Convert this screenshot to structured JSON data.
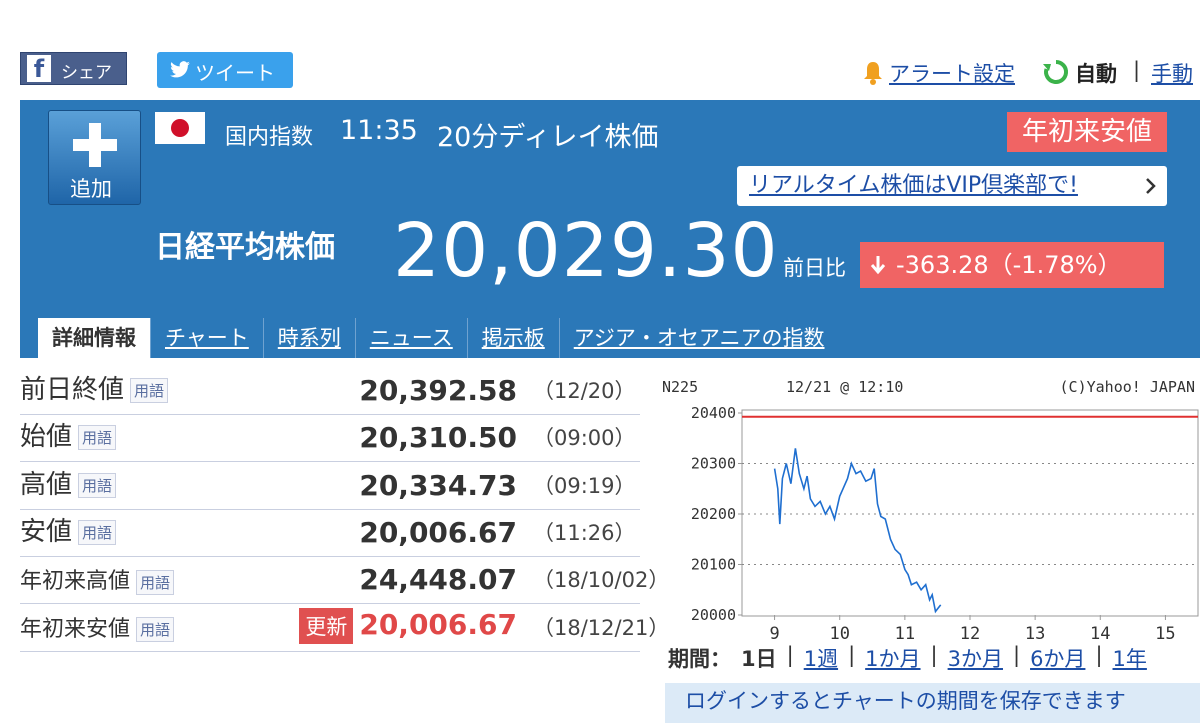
{
  "share": {
    "facebook_icon": "f",
    "facebook": "シェア",
    "twitter": "ツイート"
  },
  "header_links": {
    "alert": "アラート設定",
    "auto": "自動",
    "separator": "|",
    "manual": "手動"
  },
  "quote": {
    "add": "追加",
    "market": "国内指数",
    "time": "11:35",
    "delay": "20分ディレイ株価",
    "badge": "年初来安値",
    "vip": "リアルタイム株価はVIP倶楽部で!",
    "name": "日経平均株価",
    "price": "20,029.30",
    "change_label": "前日比",
    "change": "-363.28（-1.78%）"
  },
  "tabs": [
    "詳細情報",
    "チャート",
    "時系列",
    "ニュース",
    "掲示板",
    "アジア・オセアニアの指数"
  ],
  "table": {
    "term": "用語",
    "update": "更新",
    "rows": [
      {
        "label": "前日終値",
        "value": "20,392.58",
        "date": "（12/20）"
      },
      {
        "label": "始値",
        "value": "20,310.50",
        "date": "（09:00）"
      },
      {
        "label": "高値",
        "value": "20,334.73",
        "date": "（09:19）"
      },
      {
        "label": "安値",
        "value": "20,006.67",
        "date": "（11:26）"
      },
      {
        "label": "年初来高値",
        "value": "24,448.07",
        "date": "（18/10/02）"
      },
      {
        "label": "年初来安値",
        "value": "20,006.67",
        "date": "（18/12/21）"
      }
    ]
  },
  "chart": {
    "type": "line",
    "symbol": "N225",
    "timestamp": "12/21 @ 12:10",
    "copyright": "(C)Yahoo! JAPAN",
    "color": "#1f6fd0",
    "baseline": 20392.58,
    "baseline_color": "#e03030",
    "x": [
      9.0,
      9.05,
      9.08,
      9.12,
      9.18,
      9.25,
      9.32,
      9.38,
      9.45,
      9.5,
      9.55,
      9.62,
      9.7,
      9.78,
      9.85,
      9.92,
      10.0,
      10.05,
      10.12,
      10.18,
      10.25,
      10.32,
      10.4,
      10.48,
      10.53,
      10.58,
      10.63,
      10.7,
      10.78,
      10.85,
      10.93,
      11.0,
      11.05,
      11.1,
      11.18,
      11.25,
      11.32,
      11.38,
      11.42,
      11.47,
      11.52,
      11.55
    ],
    "values": [
      20290,
      20250,
      20180,
      20270,
      20300,
      20260,
      20330,
      20280,
      20250,
      20275,
      20230,
      20215,
      20225,
      20200,
      20215,
      20190,
      20235,
      20250,
      20270,
      20300,
      20280,
      20285,
      20265,
      20270,
      20290,
      20220,
      20195,
      20190,
      20150,
      20130,
      20120,
      20090,
      20080,
      20060,
      20065,
      20050,
      20060,
      20030,
      20040,
      20007,
      20015,
      20020
    ],
    "xlim": [
      8.5,
      15.5
    ],
    "xticks": [
      9,
      10,
      11,
      12,
      13,
      14,
      15
    ],
    "ylim": [
      20000,
      20400
    ],
    "yticks": [
      20000,
      20100,
      20200,
      20300,
      20400
    ],
    "grid": true
  },
  "periods": {
    "label": "期間：",
    "separator": "|",
    "items": [
      "1日",
      "1週",
      "1か月",
      "3か月",
      "6か月",
      "1年"
    ]
  },
  "login_note": "ログインするとチャートの期間を保存できます"
}
